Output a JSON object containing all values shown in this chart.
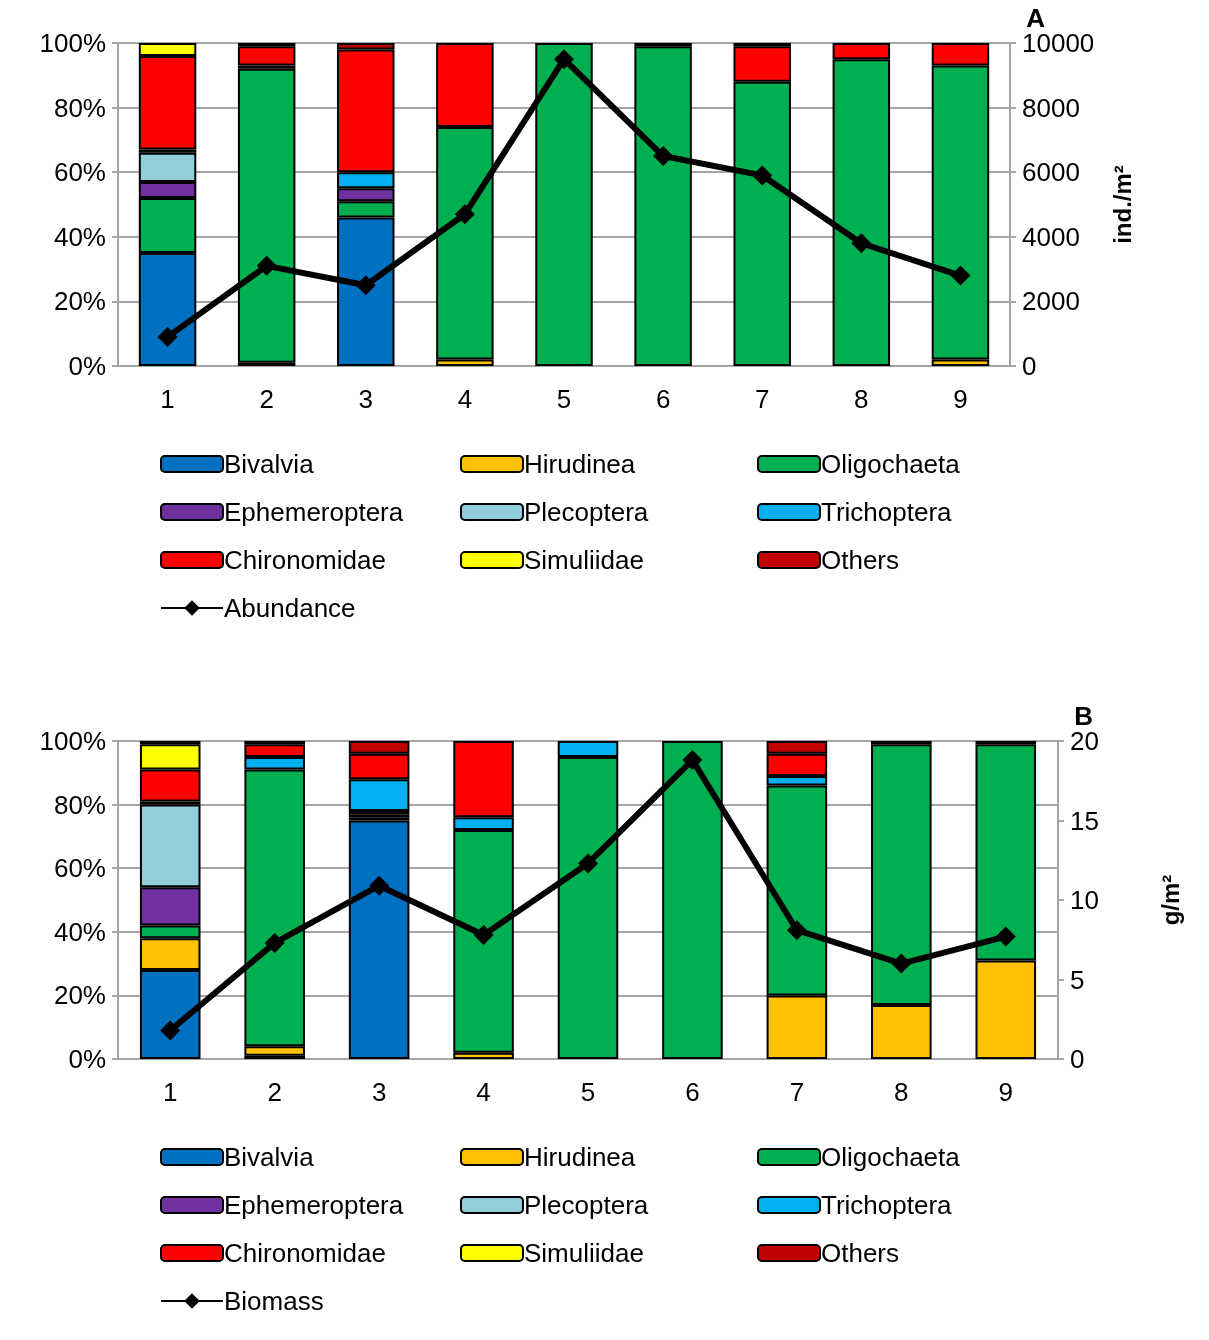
{
  "chart_data": [
    {
      "type": "bar",
      "title": "A",
      "categories": [
        "1",
        "2",
        "3",
        "4",
        "5",
        "6",
        "7",
        "8",
        "9"
      ],
      "stacked": true,
      "grid": "y",
      "legend": "bottom",
      "marker": "diamond",
      "ylim": [
        0,
        100
      ],
      "yticks": [
        {
          "value": 0,
          "label": "0%"
        },
        {
          "value": 20,
          "label": "20%"
        },
        {
          "value": 40,
          "label": "40%"
        },
        {
          "value": 60,
          "label": "60%"
        },
        {
          "value": 80,
          "label": "80%"
        },
        {
          "value": 100,
          "label": "100%"
        }
      ],
      "y2lim": [
        0,
        10000
      ],
      "y2ticks": [
        0,
        2000,
        4000,
        6000,
        8000,
        10000
      ],
      "y2label": "ind./m²",
      "series": [
        {
          "name": "Bivalvia",
          "color": "#0070c0",
          "values": [
            35,
            1,
            46,
            null,
            null,
            null,
            null,
            null,
            null
          ]
        },
        {
          "name": "Hirudinea",
          "color": "#ffc000",
          "values": [
            null,
            null,
            null,
            2,
            null,
            null,
            null,
            null,
            2
          ]
        },
        {
          "name": "Oligochaeta",
          "color": "#00b050",
          "values": [
            17,
            91,
            5,
            72,
            100,
            99,
            88,
            95,
            91
          ]
        },
        {
          "name": "Ephemeroptera",
          "color": "#7030a0",
          "values": [
            5,
            1,
            4,
            null,
            null,
            null,
            null,
            null,
            null
          ]
        },
        {
          "name": "Plecoptera",
          "color": "#92cddc",
          "values": [
            9,
            null,
            null,
            null,
            null,
            null,
            null,
            null,
            null
          ]
        },
        {
          "name": "Trichoptera",
          "color": "#00b0f0",
          "values": [
            1,
            null,
            5,
            null,
            null,
            null,
            null,
            null,
            null
          ]
        },
        {
          "name": "Chironomidae",
          "color": "#ff0000",
          "values": [
            29,
            6,
            38,
            26,
            null,
            null,
            11,
            5,
            7
          ]
        },
        {
          "name": "Simuliidae",
          "color": "#ffff00",
          "values": [
            4,
            null,
            null,
            null,
            null,
            null,
            null,
            null,
            null
          ]
        },
        {
          "name": "Others",
          "color": "#c00000",
          "values": [
            null,
            1,
            2,
            null,
            null,
            1,
            1,
            null,
            null
          ]
        },
        {
          "name": "Abundance",
          "type": "line",
          "axis": "y2",
          "color": "#000000",
          "values": [
            900,
            3100,
            2500,
            4700,
            9500,
            6500,
            5900,
            3800,
            2800
          ]
        }
      ]
    },
    {
      "type": "bar",
      "title": "B",
      "categories": [
        "1",
        "2",
        "3",
        "4",
        "5",
        "6",
        "7",
        "8",
        "9"
      ],
      "stacked": true,
      "grid": "y",
      "legend": "bottom",
      "marker": "diamond",
      "ylim": [
        0,
        100
      ],
      "yticks": [
        {
          "value": 0,
          "label": "0%"
        },
        {
          "value": 20,
          "label": "20%"
        },
        {
          "value": 40,
          "label": "40%"
        },
        {
          "value": 60,
          "label": "60%"
        },
        {
          "value": 80,
          "label": "80%"
        },
        {
          "value": 100,
          "label": "100%"
        }
      ],
      "y2lim": [
        0,
        20
      ],
      "y2ticks": [
        0,
        5,
        10,
        15,
        20
      ],
      "y2label": "g/m²",
      "series": [
        {
          "name": "Bivalvia",
          "color": "#0070c0",
          "values": [
            28,
            1,
            75,
            null,
            null,
            null,
            null,
            null,
            null
          ]
        },
        {
          "name": "Hirudinea",
          "color": "#ffc000",
          "values": [
            10,
            3,
            null,
            2,
            null,
            null,
            20,
            17,
            31
          ]
        },
        {
          "name": "Oligochaeta",
          "color": "#00b050",
          "values": [
            4,
            87,
            1,
            70,
            95,
            100,
            66,
            82,
            68
          ]
        },
        {
          "name": "Ephemeroptera",
          "color": "#7030a0",
          "values": [
            12,
            null,
            1,
            null,
            null,
            null,
            null,
            null,
            null
          ]
        },
        {
          "name": "Plecoptera",
          "color": "#92cddc",
          "values": [
            26,
            null,
            1,
            null,
            null,
            null,
            null,
            null,
            null
          ]
        },
        {
          "name": "Trichoptera",
          "color": "#00b0f0",
          "values": [
            1,
            4,
            10,
            4,
            5,
            null,
            3,
            null,
            null
          ]
        },
        {
          "name": "Chironomidae",
          "color": "#ff0000",
          "values": [
            10,
            4,
            8,
            24,
            null,
            null,
            7,
            1,
            1
          ]
        },
        {
          "name": "Simuliidae",
          "color": "#ffff00",
          "values": [
            8,
            null,
            null,
            null,
            null,
            null,
            null,
            null,
            null
          ]
        },
        {
          "name": "Others",
          "color": "#c00000",
          "values": [
            1,
            1,
            4,
            null,
            null,
            null,
            4,
            null,
            null
          ]
        },
        {
          "name": "Biomass",
          "type": "line",
          "axis": "y2",
          "color": "#000000",
          "values": [
            1.8,
            7.3,
            10.9,
            7.8,
            12.3,
            18.8,
            8.1,
            6.0,
            7.7
          ]
        }
      ]
    }
  ]
}
